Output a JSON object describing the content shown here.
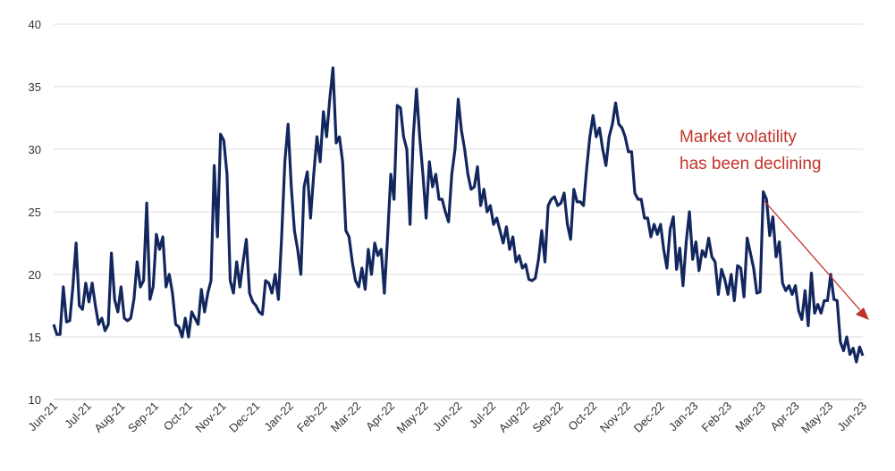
{
  "chart_data": {
    "type": "line",
    "title": "",
    "xlabel": "",
    "ylabel": "",
    "ylim": [
      10,
      40
    ],
    "yticks": [
      10,
      15,
      20,
      25,
      30,
      35,
      40
    ],
    "grid": true,
    "x_start": "Jun-21",
    "x_end": "Jun-23",
    "xtick_labels": [
      "Jun-21",
      "Jul-21",
      "Aug-21",
      "Sep-21",
      "Oct-21",
      "Nov-21",
      "Dec-21",
      "Jan-22",
      "Feb-22",
      "Mar-22",
      "Apr-22",
      "May-22",
      "Jun-22",
      "Jul-22",
      "Aug-22",
      "Sep-22",
      "Oct-22",
      "Nov-22",
      "Dec-22",
      "Jan-23",
      "Feb-23",
      "Mar-23",
      "Apr-23",
      "May-23",
      "Jun-23"
    ],
    "series": [
      {
        "name": "Market volatility",
        "color": "#13275f",
        "values": [
          16,
          15.2,
          15.2,
          19,
          16.2,
          16.3,
          19,
          22.5,
          17.5,
          17.2,
          19.3,
          17.8,
          19.3,
          17.5,
          16,
          16.5,
          15.5,
          16,
          21.7,
          18,
          17,
          19,
          16.5,
          16.3,
          16.5,
          18,
          21,
          19,
          19.5,
          25.7,
          18,
          19,
          23.2,
          22,
          23,
          19,
          20,
          18.5,
          16,
          15.8,
          15,
          16.5,
          15,
          17,
          16.5,
          16,
          18.8,
          17,
          18.5,
          19.5,
          28.7,
          23,
          31.2,
          30.7,
          28,
          19.5,
          18.5,
          21,
          19,
          21,
          22.8,
          18.5,
          17.8,
          17.5,
          17,
          16.8,
          19.5,
          19.3,
          18.5,
          20,
          18,
          23,
          29,
          32,
          27,
          23.5,
          22,
          20,
          27,
          28.2,
          24.5,
          28,
          31,
          29,
          33,
          31,
          34,
          36.5,
          30.5,
          31,
          29,
          23.5,
          23,
          21,
          19.5,
          19,
          20.5,
          18.8,
          22,
          20,
          22.5,
          21.5,
          22,
          18.5,
          23,
          28,
          26,
          33.5,
          33.3,
          31,
          30,
          24,
          31,
          34.8,
          31,
          28,
          24.5,
          29,
          27,
          28,
          26,
          26,
          25,
          24.2,
          28,
          30,
          34,
          31.5,
          30,
          28,
          26.8,
          27,
          28.6,
          25.5,
          26.8,
          25,
          25.5,
          24,
          24.5,
          23.5,
          22.5,
          23.8,
          22,
          23,
          21,
          21.5,
          20.5,
          20.8,
          19.6,
          19.5,
          19.7,
          21.2,
          23.5,
          21,
          25.5,
          26,
          26.2,
          25.5,
          25.7,
          26.5,
          24,
          22.8,
          26.8,
          25.8,
          25.8,
          25.5,
          28.5,
          31,
          32.7,
          31,
          31.7,
          30,
          28.7,
          31,
          32,
          33.7,
          32,
          31.7,
          31,
          29.8,
          29.8,
          26.5,
          26,
          26,
          24.5,
          24.5,
          23,
          24,
          23.2,
          24,
          22,
          20.5,
          23.6,
          24.6,
          20.4,
          22.1,
          19.1,
          22.6,
          25,
          21.2,
          22.6,
          20.3,
          21.9,
          21.4,
          22.9,
          21.4,
          21,
          18.4,
          20.4,
          19.6,
          18.4,
          20,
          17.9,
          20.7,
          20.5,
          18.2,
          22.9,
          21.7,
          20.5,
          18.5,
          18.6,
          26.6,
          26,
          23.1,
          24.6,
          21.4,
          22.6,
          19.3,
          18.7,
          19.1,
          18.4,
          19.1,
          17.1,
          16.4,
          18.7,
          15.9,
          20.1,
          16.9,
          17.6,
          16.9,
          17.9,
          17.9,
          20,
          18,
          17.9,
          14.6,
          13.9,
          15,
          13.6,
          14.1,
          13,
          14.2,
          13.5
        ]
      }
    ],
    "annotations": [
      "Market volatility",
      "has been declining"
    ],
    "annotation_color": "#c0332b"
  }
}
